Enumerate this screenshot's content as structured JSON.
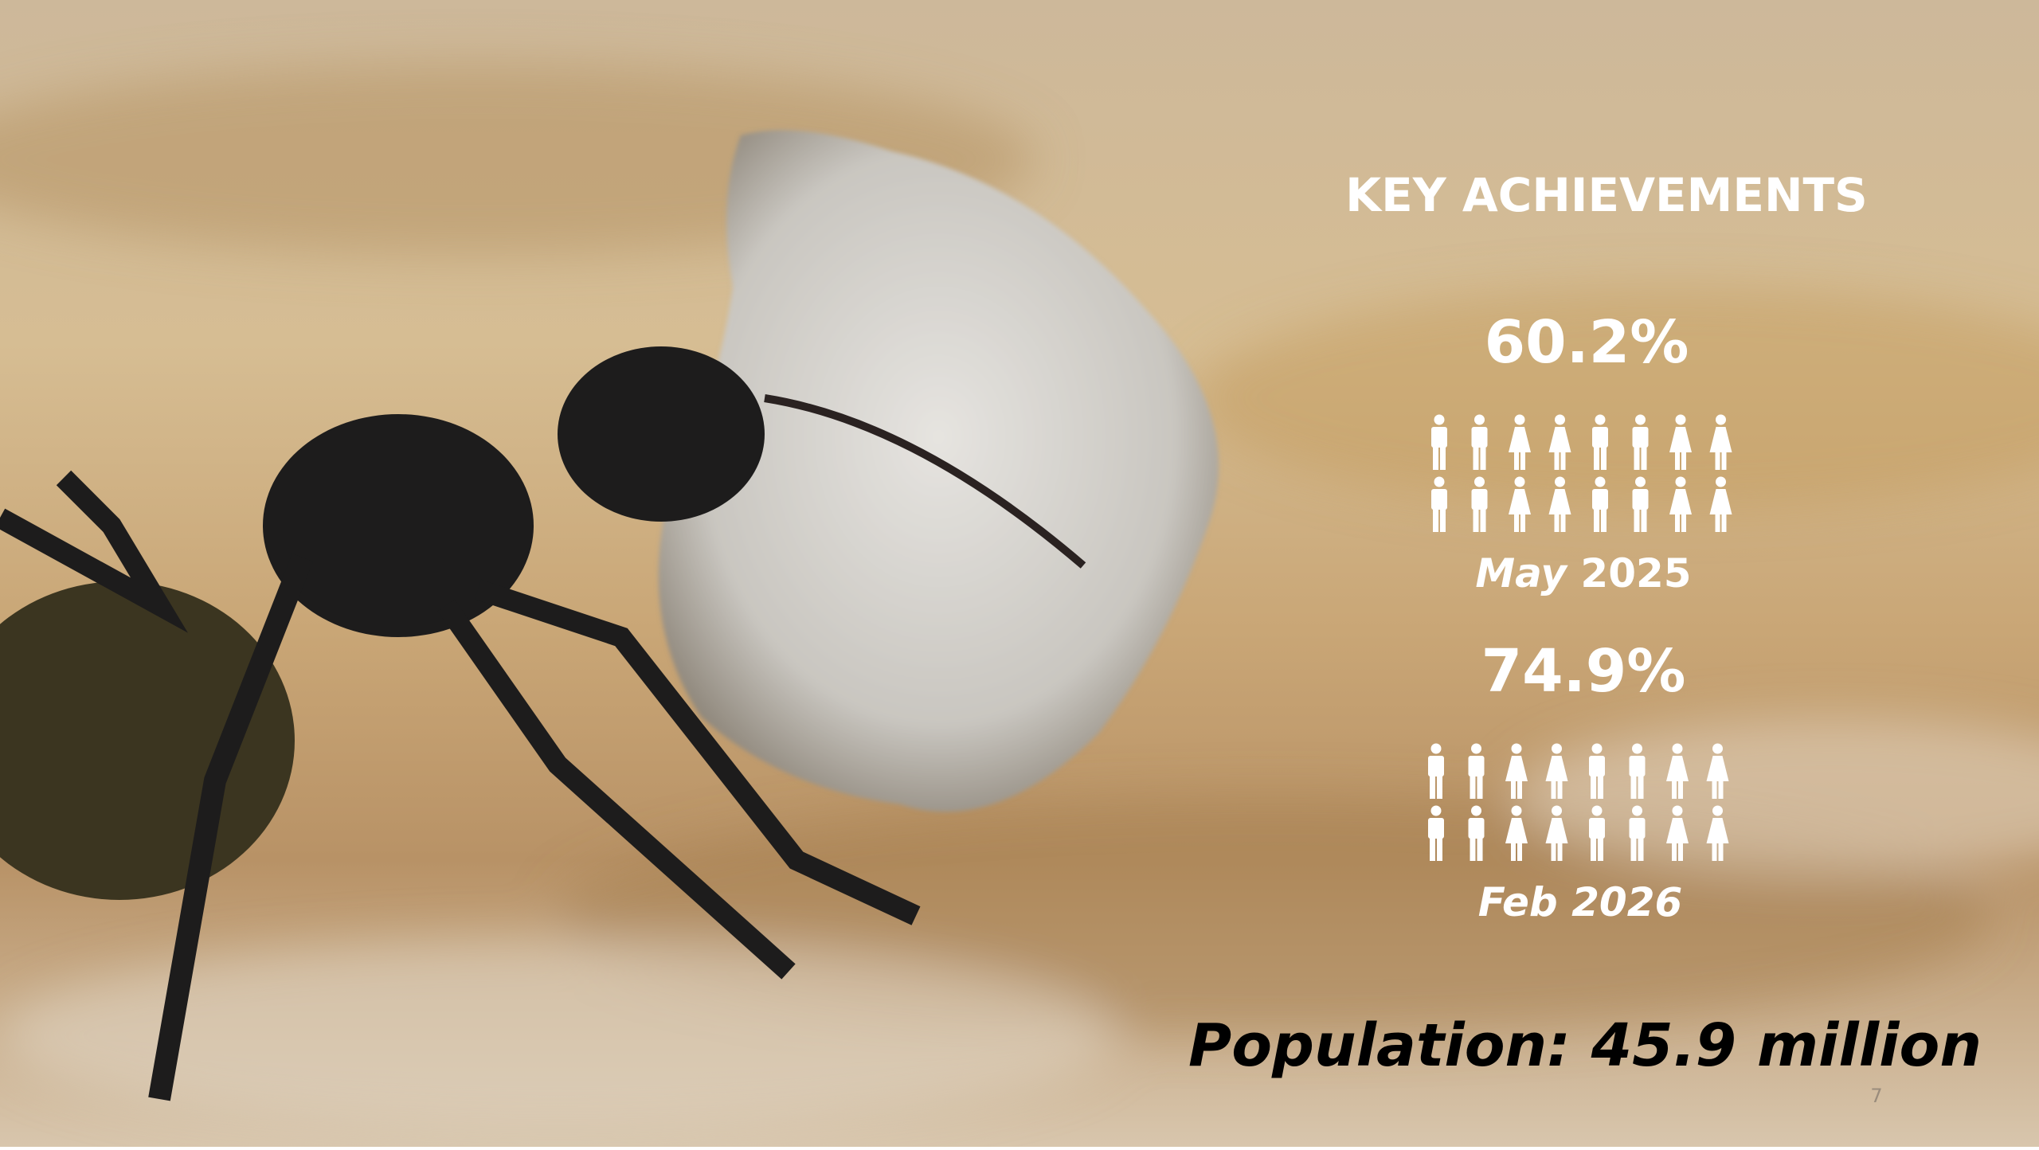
{
  "title": "KEY ACHIEVEMENTS",
  "stats": [
    {
      "value": "60.2%",
      "month": "May",
      "year": "2025"
    },
    {
      "value": "74.9%",
      "month": "Feb",
      "year": "2026"
    }
  ],
  "population": "Population: 45.9 million",
  "page_number": "7"
}
